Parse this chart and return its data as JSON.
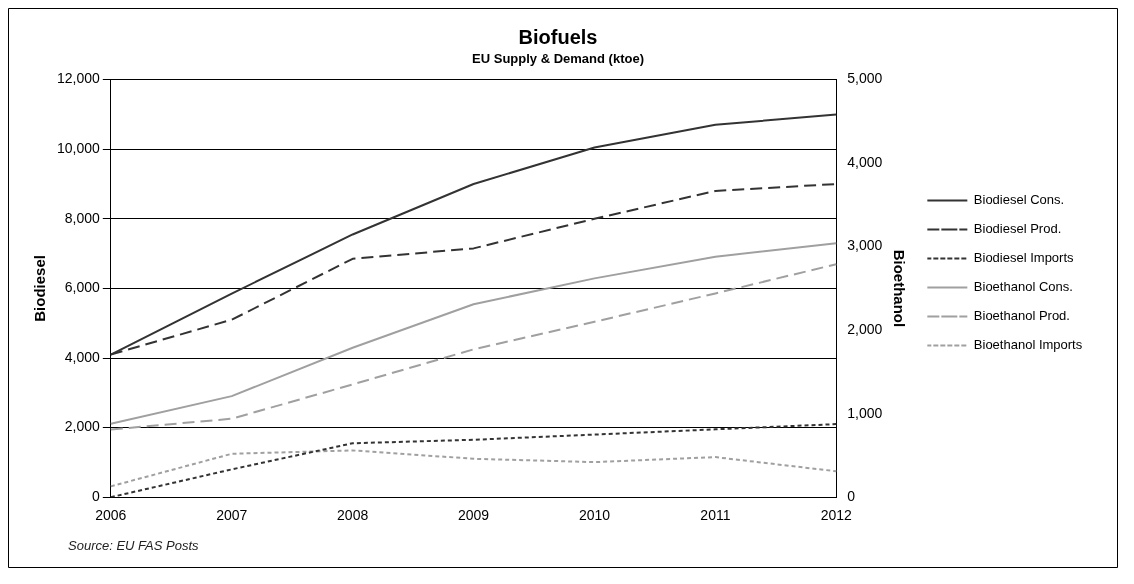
{
  "chart_data": {
    "type": "line",
    "title": "Biofuels",
    "subtitle": "EU Supply & Demand (ktoe)",
    "ylabel": "Biodiesel",
    "y2label": "Bioethanol",
    "categories": [
      "2006",
      "2007",
      "2008",
      "2009",
      "2010",
      "2011",
      "2012"
    ],
    "series": [
      {
        "name": "Biodiesel Cons.",
        "color": "#333333",
        "line_style": "solid",
        "values": [
          4100,
          5850,
          7550,
          9000,
          10050,
          10700,
          11000
        ]
      },
      {
        "name": "Biodiesel Prod.",
        "color": "#333333",
        "line_style": "dashed",
        "values": [
          4100,
          5100,
          6850,
          7150,
          8000,
          8800,
          9000
        ]
      },
      {
        "name": "Biodiesel Imports",
        "color": "#333333",
        "line_style": "dotted",
        "values": [
          0,
          800,
          1550,
          1650,
          1800,
          1950,
          2100
        ]
      },
      {
        "name": "Bioethanol Cons.",
        "color": "#a0a0a0",
        "line_style": "solid",
        "axis": "y2",
        "values": [
          880,
          1210,
          1790,
          2310,
          2620,
          2880,
          3040
        ]
      },
      {
        "name": "Bioethanol Prod.",
        "color": "#a0a0a0",
        "line_style": "dashed",
        "axis": "y2",
        "values": [
          810,
          940,
          1350,
          1770,
          2100,
          2440,
          2790
        ]
      },
      {
        "name": "Bioethanol Imports",
        "color": "#a0a0a0",
        "line_style": "dotted",
        "axis": "y2",
        "values": [
          130,
          520,
          560,
          460,
          420,
          480,
          310
        ]
      }
    ],
    "ylim": [
      0,
      12000
    ],
    "yticks": [
      0,
      {
        "value": 2000,
        "label": "2,000"
      },
      {
        "value": 4000,
        "label": "4,000"
      },
      {
        "value": 6000,
        "label": "6,000"
      },
      {
        "value": 8000,
        "label": "8,000"
      },
      {
        "value": 10000,
        "label": "10,000"
      },
      {
        "value": 12000,
        "label": "12,000"
      }
    ],
    "y2lim": [
      0,
      5000
    ],
    "y2ticks": [
      0,
      {
        "value": 1000,
        "label": "1,000"
      },
      {
        "value": 2000,
        "label": "2,000"
      },
      {
        "value": 3000,
        "label": "3,000"
      },
      {
        "value": 4000,
        "label": "4,000"
      },
      {
        "value": 5000,
        "label": "5,000"
      }
    ],
    "grid": "y",
    "legend": "right",
    "marker": "none",
    "annotations": [
      "Source: EU FAS Posts"
    ]
  }
}
